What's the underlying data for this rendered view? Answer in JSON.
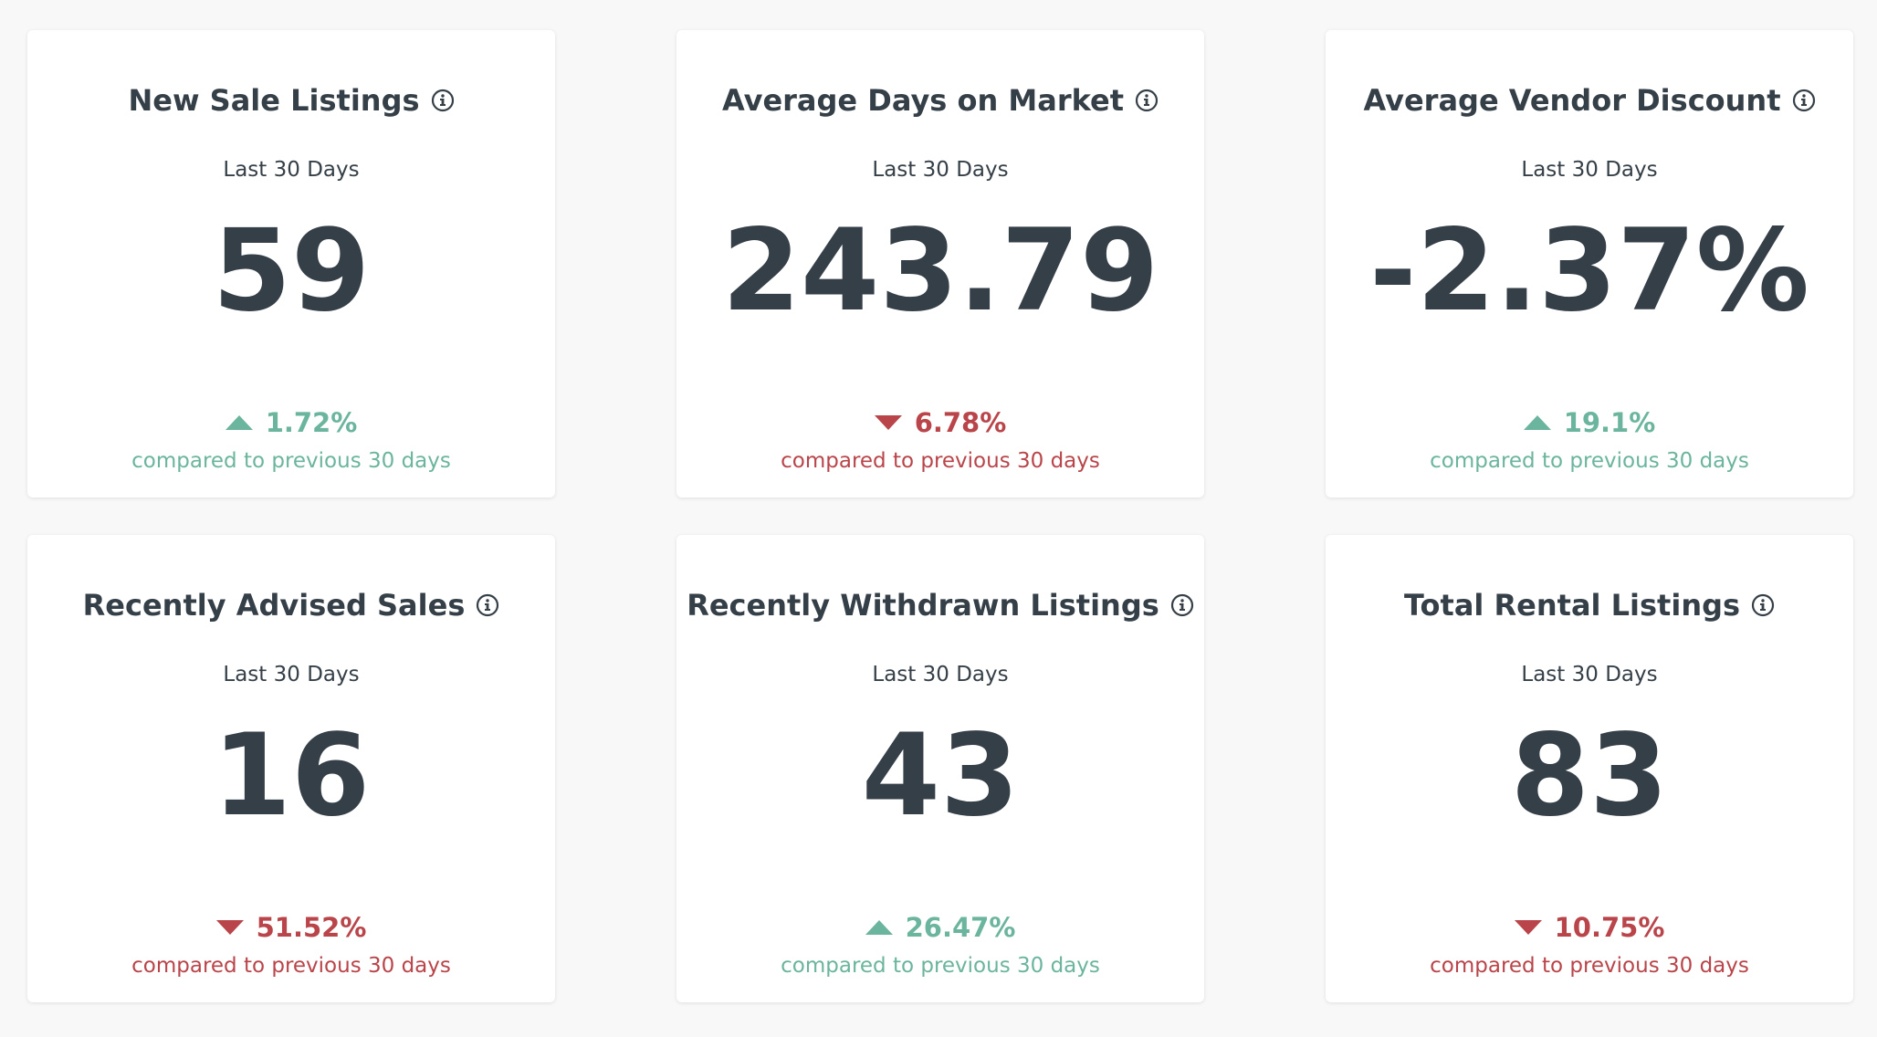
{
  "cards": [
    {
      "title": "New Sale Listings",
      "period": "Last 30 Days",
      "value": "59",
      "change": "1.72%",
      "direction": "up",
      "compare_text": "compared to previous 30 days"
    },
    {
      "title": "Average Days on Market",
      "period": "Last 30 Days",
      "value": "243.79",
      "change": "6.78%",
      "direction": "down",
      "compare_text": "compared to previous 30 days"
    },
    {
      "title": "Average Vendor Discount",
      "period": "Last 30 Days",
      "value": "-2.37%",
      "change": "19.1%",
      "direction": "up",
      "compare_text": "compared to previous 30 days"
    },
    {
      "title": "Recently Advised Sales",
      "period": "Last 30 Days",
      "value": "16",
      "change": "51.52%",
      "direction": "down",
      "compare_text": "compared to previous 30 days"
    },
    {
      "title": "Recently Withdrawn Listings",
      "period": "Last 30 Days",
      "value": "43",
      "change": "26.47%",
      "direction": "up",
      "compare_text": "compared to previous 30 days"
    },
    {
      "title": "Total Rental Listings",
      "period": "Last 30 Days",
      "value": "83",
      "change": "10.75%",
      "direction": "down",
      "compare_text": "compared to previous 30 days"
    }
  ],
  "colors": {
    "positive": "#6bb49d",
    "negative": "#b9454a",
    "text": "#353f47",
    "background": "#f8f8f8",
    "card": "#ffffff"
  },
  "icons": {
    "info": "info-circle-icon",
    "up": "triangle-up-icon",
    "down": "triangle-down-icon"
  }
}
